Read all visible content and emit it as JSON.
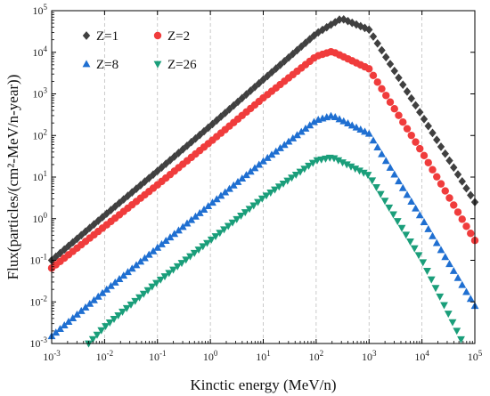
{
  "chart_data": {
    "type": "scatter",
    "x_scale": "log",
    "y_scale": "log",
    "xlabel": "Kinctic energy (MeV/n)",
    "ylabel": "Flux(particles/(cm²-MeV/n-year))",
    "xlim": [
      0.001,
      100000
    ],
    "ylim": [
      0.001,
      100000
    ],
    "x_ticks": [
      {
        "value": 0.001,
        "base": "10",
        "exp": "-3"
      },
      {
        "value": 0.01,
        "base": "10",
        "exp": "-2"
      },
      {
        "value": 0.1,
        "base": "10",
        "exp": "-1"
      },
      {
        "value": 1,
        "base": "10",
        "exp": "0"
      },
      {
        "value": 10,
        "base": "10",
        "exp": "1"
      },
      {
        "value": 100,
        "base": "10",
        "exp": "2"
      },
      {
        "value": 1000,
        "base": "10",
        "exp": "3"
      },
      {
        "value": 10000,
        "base": "10",
        "exp": "4"
      },
      {
        "value": 100000,
        "base": "10",
        "exp": "5"
      }
    ],
    "y_ticks": [
      {
        "value": 0.001,
        "base": "10",
        "exp": "-3"
      },
      {
        "value": 0.01,
        "base": "10",
        "exp": "-2"
      },
      {
        "value": 0.1,
        "base": "10",
        "exp": "-1"
      },
      {
        "value": 1,
        "base": "10",
        "exp": "0"
      },
      {
        "value": 10,
        "base": "10",
        "exp": "1"
      },
      {
        "value": 100,
        "base": "10",
        "exp": "2"
      },
      {
        "value": 1000,
        "base": "10",
        "exp": "3"
      },
      {
        "value": 10000,
        "base": "10",
        "exp": "4"
      },
      {
        "value": 100000,
        "base": "10",
        "exp": "5"
      }
    ],
    "grid": {
      "x_major": true,
      "y_major": false,
      "style": "dashed"
    },
    "legend_position": "top-left",
    "series": [
      {
        "name": "Z=1",
        "marker": "diamond",
        "color": "#404040",
        "x": [
          0.001,
          0.01,
          0.1,
          1,
          10,
          100,
          300,
          1000,
          10000,
          100000
        ],
        "y": [
          0.1,
          1.2,
          14,
          170,
          2200,
          28000,
          65000,
          35000,
          300,
          2.5
        ]
      },
      {
        "name": "Z=2",
        "marker": "circle",
        "color": "#f03c3c",
        "x": [
          0.001,
          0.01,
          0.1,
          1,
          10,
          100,
          200,
          1000,
          10000,
          100000
        ],
        "y": [
          0.065,
          0.65,
          6.5,
          70,
          800,
          8000,
          10500,
          4000,
          40,
          0.3
        ]
      },
      {
        "name": "Z=8",
        "marker": "triangle-up",
        "color": "#1f6fd1",
        "x": [
          0.001,
          0.01,
          0.1,
          1,
          10,
          100,
          200,
          1000,
          10000,
          100000
        ],
        "y": [
          0.0015,
          0.018,
          0.2,
          2.2,
          24,
          230,
          300,
          110,
          1.0,
          0.008
        ]
      },
      {
        "name": "Z=26",
        "marker": "triangle-down",
        "color": "#1a9e7a",
        "x": [
          0.005,
          0.01,
          0.1,
          1,
          10,
          100,
          200,
          1000,
          10000,
          60000
        ],
        "y": [
          0.001,
          0.0025,
          0.03,
          0.3,
          3.2,
          25,
          30,
          11,
          0.1,
          0.001
        ]
      }
    ]
  }
}
